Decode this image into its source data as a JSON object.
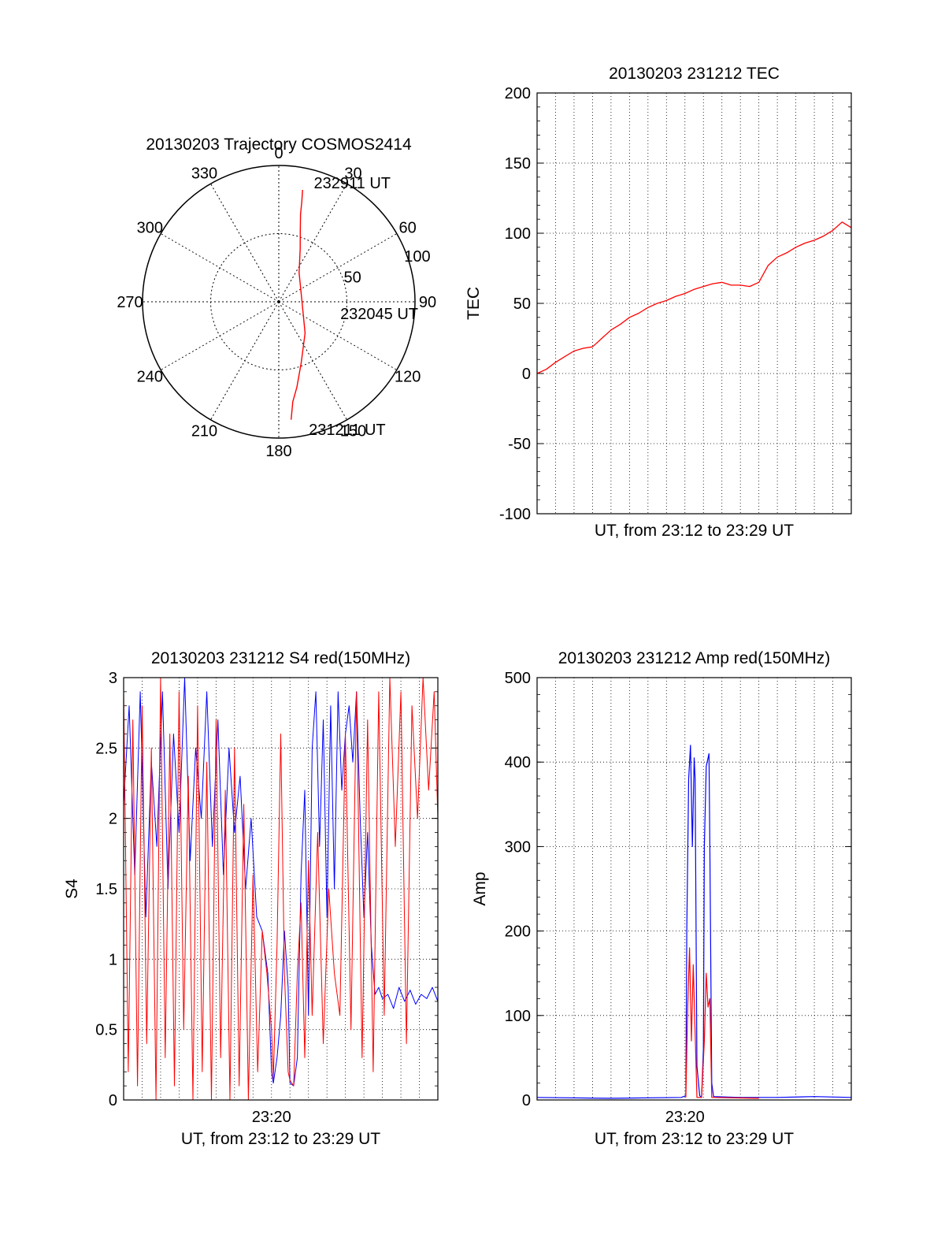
{
  "chart_data": [
    {
      "type": "polar",
      "title": "20130203 Trajectory COSMOS2414",
      "angular_ticks": [
        0,
        30,
        60,
        90,
        120,
        150,
        180,
        210,
        240,
        270,
        300,
        330
      ],
      "radial_ticks": [
        50,
        100
      ],
      "radial_range": [
        0,
        100
      ],
      "grid": true,
      "trajectory_color": "#ff0000",
      "trajectory": [
        {
          "az": 12,
          "r": 84
        },
        {
          "az": 13,
          "r": 75
        },
        {
          "az": 14,
          "r": 66
        },
        {
          "az": 17,
          "r": 54
        },
        {
          "az": 22,
          "r": 42
        },
        {
          "az": 35,
          "r": 26
        },
        {
          "az": 82,
          "r": 17
        },
        {
          "az": 140,
          "r": 30
        },
        {
          "az": 160,
          "r": 48
        },
        {
          "az": 168,
          "r": 64
        },
        {
          "az": 172,
          "r": 74
        },
        {
          "az": 174,
          "r": 87
        }
      ],
      "annotations": [
        {
          "text": "232911 UT",
          "az": 17,
          "r": 92
        },
        {
          "text": "232045 UT",
          "az": 100,
          "r": 47
        },
        {
          "text": "231211 UT",
          "az": 166,
          "r": 96
        }
      ]
    },
    {
      "type": "line",
      "title": "20130203 231212 TEC",
      "xlabel": "UT, from 23:12 to 23:29 UT",
      "ylabel": "TEC",
      "xlim": [
        0,
        17
      ],
      "ylim": [
        -100,
        200
      ],
      "yticks": [
        -100,
        -50,
        0,
        50,
        100,
        150,
        200
      ],
      "grid": true,
      "series": [
        {
          "color": "#ff0000",
          "x": [
            0,
            0.5,
            1.0,
            1.5,
            2.0,
            2.5,
            3.0,
            3.5,
            4.0,
            4.5,
            5.0,
            5.5,
            6.0,
            6.5,
            7.0,
            7.5,
            8.0,
            8.5,
            9.0,
            9.5,
            10.0,
            10.5,
            11.0,
            11.5,
            12.0,
            12.5,
            13.0,
            13.5,
            14.0,
            14.5,
            15.0,
            15.5,
            16.0,
            16.5,
            17.0
          ],
          "y": [
            0,
            3,
            8,
            12,
            16,
            18,
            19,
            25,
            31,
            35,
            40,
            43,
            47,
            50,
            52,
            55,
            57,
            60,
            62,
            64,
            65,
            63,
            63,
            62,
            65,
            77,
            83,
            86,
            90,
            93,
            95,
            98,
            102,
            108,
            104
          ]
        }
      ]
    },
    {
      "type": "line",
      "title": "20130203 231212 S4 red(150MHz)",
      "xlabel": "UT, from 23:12 to 23:29 UT",
      "ylabel": "S4",
      "xlim": [
        0,
        17
      ],
      "ylim": [
        0,
        3
      ],
      "yticks": [
        0,
        0.5,
        1,
        1.5,
        2,
        2.5,
        3
      ],
      "xtick_labels": [
        {
          "x": 8,
          "label": "23:20"
        }
      ],
      "grid": true,
      "series": [
        {
          "color": "#0000ff",
          "x": [
            0,
            0.3,
            0.6,
            0.9,
            1.2,
            1.5,
            1.8,
            2.1,
            2.4,
            2.7,
            3.0,
            3.3,
            3.6,
            3.9,
            4.2,
            4.5,
            4.8,
            5.1,
            5.4,
            5.7,
            6.0,
            6.3,
            6.6,
            6.9,
            7.2,
            7.5,
            7.8,
            8.0,
            8.1,
            8.3,
            8.5,
            8.7,
            8.9,
            9.0,
            9.2,
            9.4,
            9.6,
            9.8,
            10.0,
            10.2,
            10.4,
            10.6,
            10.8,
            11.0,
            11.2,
            11.4,
            11.6,
            11.8,
            12.0,
            12.2,
            12.4,
            12.6,
            12.8,
            13.0,
            13.2,
            13.4,
            13.6,
            13.8,
            14.0,
            14.3,
            14.6,
            14.9,
            15.2,
            15.5,
            15.8,
            16.1,
            16.4,
            16.7,
            17.0
          ],
          "y": [
            2.1,
            2.8,
            1.6,
            2.9,
            1.3,
            2.4,
            1.8,
            2.9,
            1.5,
            2.6,
            1.9,
            3.0,
            1.7,
            2.5,
            2.0,
            2.9,
            1.8,
            2.7,
            1.6,
            2.5,
            1.9,
            2.3,
            1.5,
            2.0,
            1.3,
            1.2,
            0.9,
            0.2,
            0.12,
            0.3,
            0.6,
            1.2,
            0.8,
            0.12,
            0.1,
            0.3,
            1.6,
            2.2,
            0.6,
            2.5,
            2.9,
            1.8,
            2.7,
            1.3,
            2.8,
            1.5,
            2.9,
            2.2,
            2.6,
            2.8,
            2.4,
            2.9,
            2.0,
            1.3,
            1.9,
            1.1,
            0.75,
            0.8,
            0.72,
            0.75,
            0.65,
            0.8,
            0.7,
            0.78,
            0.68,
            0.75,
            0.72,
            0.8,
            0.7
          ]
        },
        {
          "color": "#ff0000",
          "x": [
            0,
            0.25,
            0.5,
            0.75,
            1.0,
            1.25,
            1.5,
            1.75,
            2.0,
            2.25,
            2.5,
            2.75,
            3.0,
            3.25,
            3.5,
            3.75,
            4.0,
            4.25,
            4.5,
            4.75,
            5.0,
            5.25,
            5.5,
            5.75,
            6.0,
            6.25,
            6.5,
            6.75,
            7.0,
            7.25,
            7.5,
            7.75,
            8.0,
            8.1,
            8.3,
            8.5,
            8.7,
            8.9,
            9.0,
            9.2,
            9.4,
            9.6,
            9.8,
            10.0,
            10.2,
            10.5,
            10.8,
            11.1,
            11.4,
            11.7,
            12.0,
            12.3,
            12.6,
            12.9,
            13.2,
            13.5,
            13.8,
            14.1,
            14.4,
            14.7,
            15.0,
            15.3,
            15.6,
            15.9,
            16.2,
            16.5,
            16.8,
            17.0
          ],
          "y": [
            2.9,
            0.2,
            2.7,
            0.1,
            2.8,
            0.4,
            2.5,
            0.0,
            3.0,
            0.3,
            2.6,
            0.1,
            2.9,
            0.5,
            2.3,
            0.0,
            2.8,
            0.2,
            2.4,
            0.0,
            2.7,
            0.3,
            2.2,
            0.0,
            2.5,
            0.1,
            2.1,
            0.0,
            1.6,
            0.2,
            1.2,
            0.9,
            0.5,
            0.15,
            1.1,
            2.6,
            0.9,
            0.2,
            0.14,
            0.1,
            0.9,
            1.4,
            0.3,
            1.7,
            0.6,
            1.9,
            0.4,
            1.5,
            0.9,
            0.6,
            2.6,
            0.5,
            2.9,
            0.3,
            2.7,
            0.2,
            2.9,
            0.6,
            3.0,
            1.8,
            2.9,
            0.4,
            2.8,
            2.0,
            3.0,
            2.2,
            2.9,
            2.0
          ]
        }
      ]
    },
    {
      "type": "line",
      "title": "20130203 231212 Amp red(150MHz)",
      "xlabel": "UT, from 23:12 to 23:29 UT",
      "ylabel": "Amp",
      "xlim": [
        0,
        17
      ],
      "ylim": [
        0,
        500
      ],
      "yticks": [
        0,
        100,
        200,
        300,
        400,
        500
      ],
      "xtick_labels": [
        {
          "x": 8,
          "label": "23:20"
        }
      ],
      "grid": true,
      "series": [
        {
          "color": "#0000ff",
          "x": [
            0,
            4.0,
            7.8,
            8.05,
            8.1,
            8.2,
            8.3,
            8.4,
            8.5,
            8.55,
            8.65,
            8.8,
            8.9,
            9.0,
            9.05,
            9.15,
            9.3,
            9.35,
            9.45,
            9.55,
            11.0,
            13.0,
            15.0,
            17.0
          ],
          "y": [
            3,
            2,
            3,
            5,
            200,
            380,
            420,
            300,
            405,
            380,
            40,
            5,
            3,
            60,
            300,
            395,
            410,
            300,
            20,
            4,
            3,
            3,
            4,
            3
          ]
        },
        {
          "color": "#ff0000",
          "x": [
            8.05,
            8.15,
            8.25,
            8.35,
            8.45,
            8.55,
            8.65,
            8.9,
            9.05,
            9.15,
            9.25,
            9.35,
            9.45,
            12.0
          ],
          "y": [
            3,
            110,
            180,
            70,
            160,
            80,
            3,
            3,
            70,
            150,
            110,
            120,
            3,
            2
          ]
        }
      ]
    }
  ]
}
